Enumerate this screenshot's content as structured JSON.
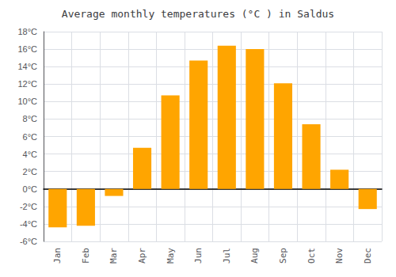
{
  "chart_data": {
    "type": "bar",
    "title": "Average monthly temperatures (°C ) in Saldus",
    "categories": [
      "Jan",
      "Feb",
      "Mar",
      "Apr",
      "May",
      "Jun",
      "Jul",
      "Aug",
      "Sep",
      "Oct",
      "Nov",
      "Dec"
    ],
    "values": [
      -4.4,
      -4.2,
      -0.8,
      4.7,
      10.7,
      14.7,
      16.4,
      16.0,
      12.1,
      7.4,
      2.2,
      -2.3
    ],
    "color": "#FFA500",
    "ylim": [
      -6,
      18
    ],
    "yticks": [
      {
        "value": -6,
        "label": "-6°C"
      },
      {
        "value": -4,
        "label": "-4°C"
      },
      {
        "value": -2,
        "label": "-2°C"
      },
      {
        "value": 0,
        "label": "0°C"
      },
      {
        "value": 2,
        "label": "2°C"
      },
      {
        "value": 4,
        "label": "4°C"
      },
      {
        "value": 6,
        "label": "6°C"
      },
      {
        "value": 8,
        "label": "8°C"
      },
      {
        "value": 10,
        "label": "10°C"
      },
      {
        "value": 12,
        "label": "12°C"
      },
      {
        "value": 14,
        "label": "14°C"
      },
      {
        "value": 16,
        "label": "16°C"
      },
      {
        "value": 18,
        "label": "18°C"
      }
    ],
    "grid": true
  }
}
